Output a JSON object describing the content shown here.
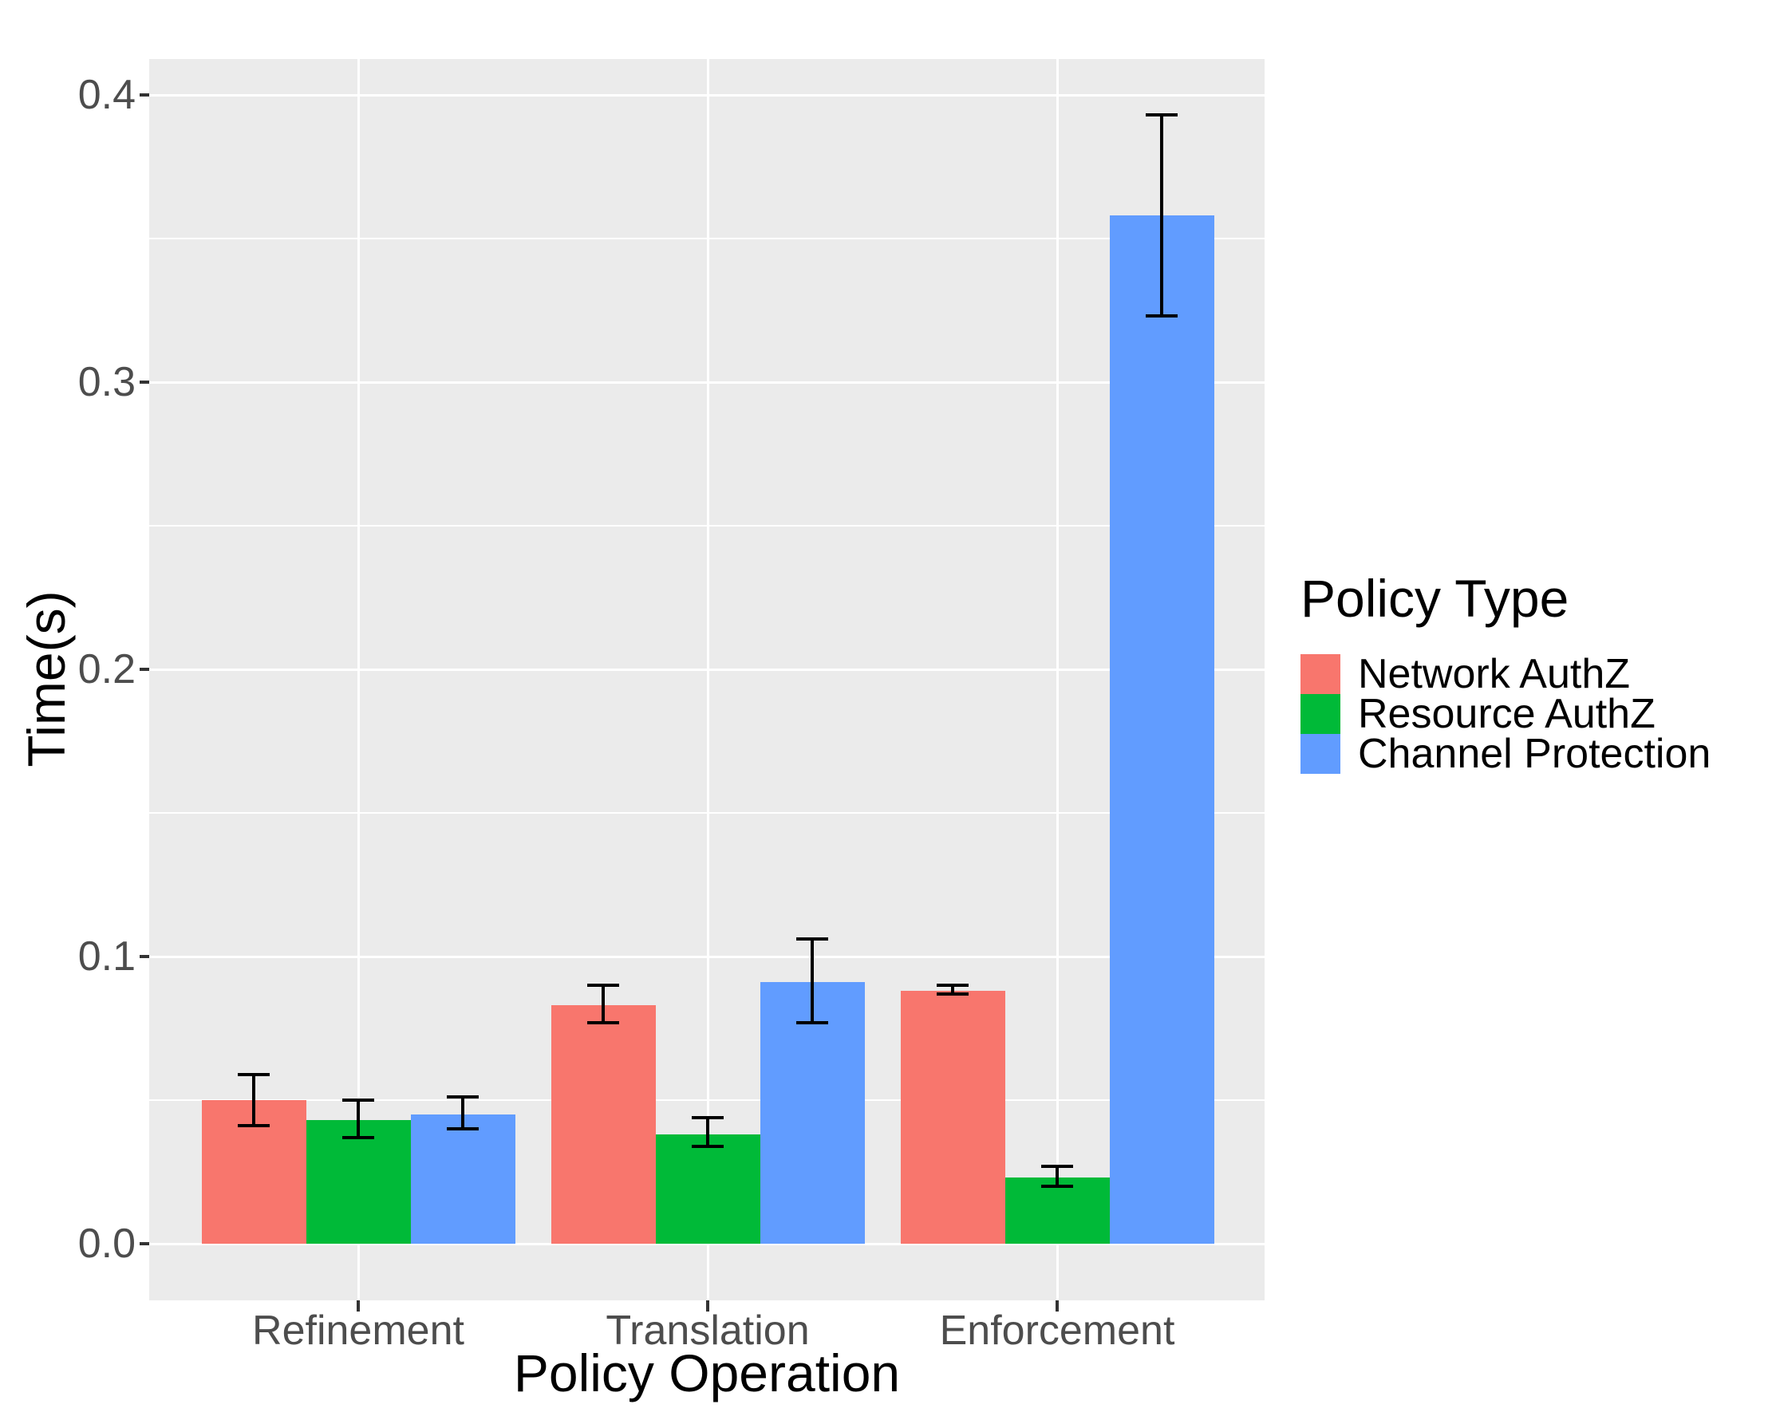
{
  "figure": {
    "background": "#FFFFFF"
  },
  "chart_data": {
    "type": "bar",
    "title": "",
    "xlabel": "Policy Operation",
    "ylabel": "Time(s)",
    "categories": [
      "Refinement",
      "Translation",
      "Enforcement"
    ],
    "series": [
      {
        "name": "Network AuthZ",
        "color": "#F8766D",
        "values": [
          0.05,
          0.083,
          0.088
        ],
        "error_low": [
          0.041,
          0.077,
          0.087
        ],
        "error_high": [
          0.059,
          0.09,
          0.09
        ]
      },
      {
        "name": "Resource AuthZ",
        "color": "#00BA38",
        "values": [
          0.043,
          0.038,
          0.023
        ],
        "error_low": [
          0.037,
          0.034,
          0.02
        ],
        "error_high": [
          0.05,
          0.044,
          0.027
        ]
      },
      {
        "name": "Channel Protection",
        "color": "#619CFF",
        "values": [
          0.045,
          0.091,
          0.358
        ],
        "error_low": [
          0.04,
          0.077,
          0.323
        ],
        "error_high": [
          0.051,
          0.106,
          0.393
        ]
      }
    ],
    "y_ticks": [
      {
        "value": 0.0,
        "label": "0.0"
      },
      {
        "value": 0.1,
        "label": "0.1"
      },
      {
        "value": 0.2,
        "label": "0.2"
      },
      {
        "value": 0.3,
        "label": "0.3"
      },
      {
        "value": 0.4,
        "label": "0.4"
      }
    ],
    "y_minor_ticks": [
      0.05,
      0.15,
      0.25,
      0.35
    ],
    "ylim": [
      0,
      0.4
    ],
    "grid": true,
    "error_bars": true,
    "legend": {
      "title": "Policy Type",
      "position": "right"
    },
    "style": {
      "panel_background": "#EBEBEB",
      "grid_color": "#FFFFFF",
      "tick_label_color": "#4D4D4D",
      "axis_title_color": "#000000",
      "error_bar_color": "#000000"
    }
  }
}
